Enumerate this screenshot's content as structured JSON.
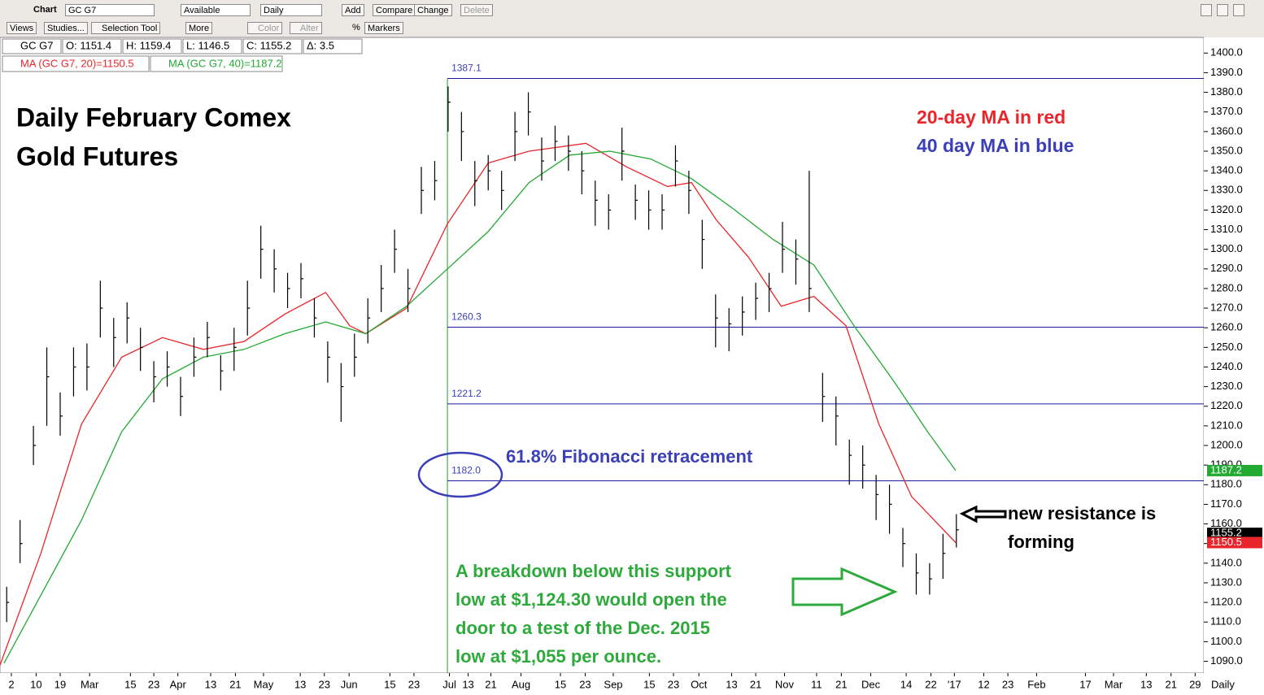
{
  "toolbar": {
    "row1": [
      "Chart",
      "GC G7",
      "Available",
      "Daily",
      "Add",
      "Compare",
      "Change",
      "Delete"
    ],
    "row2": [
      "Views",
      "Studies...",
      "Selection Tool",
      "More",
      "Color",
      "Alter",
      "%",
      "Markers"
    ]
  },
  "quote": [
    "GC G7",
    "O: 1151.4",
    "H: 1159.4",
    "L: 1146.5",
    "C: 1155.2",
    "Δ: 3.5"
  ],
  "chart_data": {
    "type": "hlc",
    "title": [
      "Daily February Comex",
      "Gold Futures"
    ],
    "annotations": {
      "ma_notes": [
        "20-day MA in red",
        "40 day MA in blue"
      ],
      "fib_note": "61.8% Fibonacci retracement",
      "resistance": [
        "new resistance is",
        "forming"
      ],
      "breakdown": [
        "A breakdown below this support",
        "low at $1,124.30 would open the",
        "door to a test of the Dec. 2015",
        "low at $1,055 per ounce."
      ]
    },
    "color": "#000000",
    "x": [
      1,
      3,
      5,
      7,
      9,
      11,
      13,
      15,
      17,
      19,
      21,
      23,
      25,
      27,
      29,
      31,
      33,
      35,
      37,
      39,
      41,
      43,
      45,
      47,
      49,
      51,
      53,
      55,
      57,
      59,
      61,
      63,
      65,
      67,
      69,
      71,
      73,
      75,
      77,
      79,
      81,
      83,
      85,
      87,
      89,
      91,
      93,
      95,
      97,
      99,
      101,
      103,
      105,
      107,
      109,
      111,
      113,
      115,
      117,
      119,
      121,
      123,
      125,
      127,
      129,
      131,
      133,
      135,
      137,
      139,
      141,
      143
    ],
    "high": [
      1128,
      1162,
      1210,
      1250,
      1227,
      1250,
      1252,
      1284,
      1265,
      1273,
      1260,
      1243,
      1248,
      1235,
      1255,
      1263,
      1246,
      1260,
      1284,
      1312,
      1300,
      1288,
      1293,
      1275,
      1253,
      1242,
      1257,
      1275,
      1292,
      1310,
      1290,
      1342,
      1345,
      1383,
      1370,
      1345,
      1348,
      1340,
      1370,
      1380,
      1357,
      1363,
      1358,
      1350,
      1335,
      1328,
      1362,
      1333,
      1330,
      1328,
      1353,
      1340,
      1315,
      1277,
      1270,
      1276,
      1283,
      1288,
      1314,
      1305,
      1340,
      1237,
      1225,
      1203,
      1200,
      1185,
      1180,
      1158,
      1145,
      1140,
      1155,
      1165
    ],
    "low": [
      1110,
      1140,
      1190,
      1210,
      1205,
      1225,
      1228,
      1255,
      1240,
      1252,
      1238,
      1222,
      1230,
      1215,
      1235,
      1245,
      1228,
      1238,
      1256,
      1285,
      1278,
      1270,
      1275,
      1255,
      1232,
      1212,
      1235,
      1252,
      1268,
      1288,
      1268,
      1318,
      1325,
      1360,
      1345,
      1322,
      1330,
      1320,
      1345,
      1358,
      1335,
      1345,
      1340,
      1328,
      1312,
      1310,
      1335,
      1315,
      1310,
      1310,
      1332,
      1318,
      1290,
      1250,
      1248,
      1256,
      1264,
      1268,
      1288,
      1282,
      1268,
      1212,
      1200,
      1180,
      1178,
      1162,
      1155,
      1138,
      1124,
      1124,
      1132,
      1148
    ],
    "close": [
      1120,
      1150,
      1200,
      1235,
      1215,
      1240,
      1240,
      1270,
      1255,
      1265,
      1250,
      1235,
      1240,
      1225,
      1245,
      1255,
      1238,
      1250,
      1270,
      1300,
      1290,
      1280,
      1285,
      1265,
      1245,
      1230,
      1245,
      1265,
      1280,
      1300,
      1280,
      1330,
      1335,
      1375,
      1360,
      1335,
      1340,
      1330,
      1360,
      1370,
      1345,
      1355,
      1350,
      1340,
      1325,
      1320,
      1350,
      1325,
      1320,
      1320,
      1345,
      1330,
      1305,
      1265,
      1262,
      1268,
      1275,
      1280,
      1300,
      1295,
      1280,
      1225,
      1215,
      1195,
      1190,
      1175,
      1170,
      1150,
      1135,
      1132,
      1145,
      1157
    ],
    "lines": [
      {
        "name": "MA (GC G7, 20)=1150.5",
        "color": "#e8262b",
        "x": [
          0,
          6.1,
          12.2,
          18.2,
          24.3,
          30.4,
          36.5,
          42.6,
          48.7,
          52.3,
          54.7,
          60.8,
          66.9,
          73,
          79.1,
          87.6,
          93.7,
          99.8,
          103.4,
          107.1,
          111.9,
          116.8,
          121.7,
          126.5,
          131.4,
          136.3,
          142.9
        ],
        "values": [
          1088,
          1145,
          1211,
          1245,
          1255,
          1249,
          1253,
          1267,
          1278,
          1261,
          1257,
          1270,
          1313,
          1344,
          1350,
          1354,
          1342,
          1332,
          1334,
          1315,
          1296,
          1271,
          1276,
          1261,
          1211,
          1174,
          1150.5
        ]
      },
      {
        "name": "MA (GC G7, 40)=1187.2",
        "color": "#22aa33",
        "x": [
          0.6,
          12.2,
          18.2,
          24.3,
          30.4,
          36.5,
          42.6,
          48.7,
          54.7,
          60.8,
          66.9,
          73,
          79.1,
          85.2,
          91.2,
          97.3,
          103.4,
          109.5,
          115.6,
          121.7,
          127.7,
          133.8,
          138.7,
          142.9
        ],
        "values": [
          1089,
          1162,
          1207,
          1234,
          1245,
          1249,
          1257,
          1263,
          1257,
          1271,
          1290,
          1309,
          1334,
          1348,
          1350,
          1346,
          1336,
          1321,
          1305,
          1292,
          1261,
          1232,
          1207,
          1187.2
        ]
      }
    ],
    "fib_start_x": 66.9,
    "fib_levels": [
      1387.1,
      1260.3,
      1221.2,
      {
        "value": 1182,
        "label": "1182.0"
      }
    ],
    "price_flags": [
      {
        "value": 1187.2,
        "color": "#22aa33"
      },
      {
        "value": 1155.2,
        "color": "#000000"
      },
      {
        "value": 1150.5,
        "color": "#e8262b"
      }
    ],
    "xlim": [
      0,
      180
    ],
    "ylim": [
      1084,
      1408
    ],
    "yticks": [
      {
        "value": 1090,
        "label": "1090.0"
      },
      {
        "value": 1100,
        "label": "1100.0"
      },
      {
        "value": 1110,
        "label": "1110.0"
      },
      {
        "value": 1120,
        "label": "1120.0"
      },
      {
        "value": 1130,
        "label": "1130.0"
      },
      {
        "value": 1140,
        "label": "1140.0"
      },
      {
        "value": 1150,
        "label": "1150.0"
      },
      {
        "value": 1160,
        "label": "1160.0"
      },
      {
        "value": 1170,
        "label": "1170.0"
      },
      {
        "value": 1180,
        "label": "1180.0"
      },
      {
        "value": 1190,
        "label": "1190.0"
      },
      {
        "value": 1200,
        "label": "1200.0"
      },
      {
        "value": 1210,
        "label": "1210.0"
      },
      {
        "value": 1220,
        "label": "1220.0"
      },
      {
        "value": 1230,
        "label": "1230.0"
      },
      {
        "value": 1240,
        "label": "1240.0"
      },
      {
        "value": 1250,
        "label": "1250.0"
      },
      {
        "value": 1260,
        "label": "1260.0"
      },
      {
        "value": 1270,
        "label": "1270.0"
      },
      {
        "value": 1280,
        "label": "1280.0"
      },
      {
        "value": 1290,
        "label": "1290.0"
      },
      {
        "value": 1300,
        "label": "1300.0"
      },
      {
        "value": 1310,
        "label": "1310.0"
      },
      {
        "value": 1320,
        "label": "1320.0"
      },
      {
        "value": 1330,
        "label": "1330.0"
      },
      {
        "value": 1340,
        "label": "1340.0"
      },
      {
        "value": 1350,
        "label": "1350.0"
      },
      {
        "value": 1360,
        "label": "1360.0"
      },
      {
        "value": 1370,
        "label": "1370.0"
      },
      {
        "value": 1380,
        "label": "1380.0"
      },
      {
        "value": 1390,
        "label": "1390.0"
      },
      {
        "value": 1400,
        "label": "1400.0"
      }
    ],
    "xticks": [
      {
        "value": 1.7,
        "label": "2"
      },
      {
        "value": 5.4,
        "label": "10"
      },
      {
        "value": 9,
        "label": "19"
      },
      {
        "value": 13.4,
        "label": "Mar"
      },
      {
        "value": 19.5,
        "label": "15"
      },
      {
        "value": 23,
        "label": "23"
      },
      {
        "value": 26.6,
        "label": "Apr"
      },
      {
        "value": 31.5,
        "label": "13"
      },
      {
        "value": 35.2,
        "label": "21"
      },
      {
        "value": 39.4,
        "label": "May"
      },
      {
        "value": 44.9,
        "label": "13"
      },
      {
        "value": 48.5,
        "label": "23"
      },
      {
        "value": 52.2,
        "label": "Jun"
      },
      {
        "value": 58.3,
        "label": "15"
      },
      {
        "value": 61.9,
        "label": "23"
      },
      {
        "value": 67.2,
        "label": "Jul"
      },
      {
        "value": 70,
        "label": "13"
      },
      {
        "value": 73.4,
        "label": "21"
      },
      {
        "value": 77.9,
        "label": "Aug"
      },
      {
        "value": 83.8,
        "label": "15"
      },
      {
        "value": 87.5,
        "label": "23"
      },
      {
        "value": 91.7,
        "label": "Sep"
      },
      {
        "value": 97.1,
        "label": "15"
      },
      {
        "value": 100.7,
        "label": "23"
      },
      {
        "value": 104.5,
        "label": "Oct"
      },
      {
        "value": 109.4,
        "label": "13"
      },
      {
        "value": 113,
        "label": "21"
      },
      {
        "value": 117.3,
        "label": "Nov"
      },
      {
        "value": 122.1,
        "label": "11"
      },
      {
        "value": 125.8,
        "label": "21"
      },
      {
        "value": 130.2,
        "label": "Dec"
      },
      {
        "value": 135.5,
        "label": "14"
      },
      {
        "value": 139.2,
        "label": "22"
      },
      {
        "value": 142.7,
        "label": "'17"
      },
      {
        "value": 147.1,
        "label": "12"
      },
      {
        "value": 150.7,
        "label": "23"
      },
      {
        "value": 155,
        "label": "Feb"
      },
      {
        "value": 162.3,
        "label": "17"
      },
      {
        "value": 166.5,
        "label": "Mar"
      },
      {
        "value": 171.4,
        "label": "13"
      },
      {
        "value": 175.1,
        "label": "21"
      },
      {
        "value": 178.7,
        "label": "29"
      }
    ],
    "period_label": "Daily"
  }
}
